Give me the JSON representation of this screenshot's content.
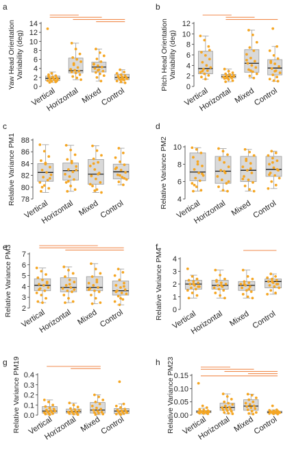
{
  "colors": {
    "point": "#f5a623",
    "box_fill": "#d9d9d9",
    "box_edge": "#9a9a9a",
    "median": "#1a1a1a",
    "sig": "#f08a4b"
  },
  "chart_data": [
    {
      "type": "box",
      "panel_label": "a",
      "ylabel": "Yaw Head Orientation Variability (deg)",
      "ylabel_lines": [
        "Yaw Head Orientation",
        "Variability (deg)"
      ],
      "categories": [
        "Vertical",
        "Horizontal",
        "Mixed",
        "Control"
      ],
      "ylim": [
        0,
        14
      ],
      "yticks": [
        0,
        2,
        4,
        6,
        8,
        10,
        12,
        14
      ],
      "boxes": [
        {
          "whisker_low": 0.9,
          "q1": 1.3,
          "median": 1.8,
          "q3": 2.3,
          "whisker_high": 3.2
        },
        {
          "whisker_low": 1.5,
          "q1": 3.0,
          "median": 3.5,
          "q3": 6.3,
          "whisker_high": 9.6
        },
        {
          "whisker_low": 1.2,
          "q1": 3.2,
          "median": 4.3,
          "q3": 5.4,
          "whisker_high": 8.3
        },
        {
          "whisker_low": 0.8,
          "q1": 1.5,
          "median": 2.0,
          "q3": 2.7,
          "whisker_high": 3.7
        }
      ],
      "points": [
        [
          12.8,
          2.9,
          2.4,
          2.2,
          2.0,
          1.9,
          1.8,
          1.7,
          1.6,
          1.5,
          1.4,
          1.3,
          1.1,
          1.0,
          2.6,
          2.1,
          1.2,
          0.9
        ],
        [
          9.6,
          8.3,
          7.2,
          6.4,
          6.0,
          5.5,
          4.8,
          4.2,
          3.8,
          3.6,
          3.4,
          3.2,
          3.0,
          2.6,
          2.2,
          1.9,
          1.5,
          5.1
        ],
        [
          8.3,
          7.5,
          6.8,
          6.1,
          5.5,
          5.0,
          4.6,
          4.3,
          4.0,
          3.7,
          3.4,
          3.1,
          2.8,
          2.4,
          2.0,
          1.2,
          4.9,
          3.6
        ],
        [
          3.7,
          3.2,
          2.9,
          2.6,
          2.4,
          2.3,
          2.1,
          2.0,
          1.9,
          1.8,
          1.7,
          1.5,
          1.4,
          1.2,
          1.0,
          0.8,
          2.2,
          1.6
        ]
      ],
      "sig_bars": [
        [
          0,
          1
        ],
        [
          0,
          2
        ],
        [
          1,
          3
        ],
        [
          2,
          3
        ]
      ]
    },
    {
      "type": "box",
      "panel_label": "b",
      "ylabel": "Pitch Head Orientation Variability (deg)",
      "ylabel_lines": [
        "Pitch Head Orientation",
        "Variability (deg)"
      ],
      "categories": [
        "Vertical",
        "Horizontal",
        "Mixed",
        "Control"
      ],
      "ylim": [
        0,
        12
      ],
      "yticks": [
        0,
        2,
        4,
        6,
        8,
        10,
        12
      ],
      "boxes": [
        {
          "whisker_low": 1.4,
          "q1": 2.4,
          "median": 3.4,
          "q3": 6.7,
          "whisker_high": 9.6
        },
        {
          "whisker_low": 0.9,
          "q1": 1.6,
          "median": 1.9,
          "q3": 2.3,
          "whisker_high": 3.3
        },
        {
          "whisker_low": 1.6,
          "q1": 2.7,
          "median": 4.4,
          "q3": 7.0,
          "whisker_high": 10.7
        },
        {
          "whisker_low": 1.0,
          "q1": 2.2,
          "median": 3.5,
          "q3": 5.1,
          "whisker_high": 7.6
        }
      ],
      "points": [
        [
          9.6,
          8.8,
          7.6,
          6.5,
          5.9,
          5.2,
          4.6,
          4.0,
          3.6,
          3.3,
          3.0,
          2.7,
          2.4,
          2.1,
          1.8,
          1.4,
          6.9,
          2.9
        ],
        [
          3.3,
          2.9,
          2.6,
          2.4,
          2.2,
          2.1,
          2.0,
          1.9,
          1.8,
          1.7,
          1.6,
          1.5,
          1.3,
          1.1,
          0.9,
          2.3,
          1.9,
          1.6
        ],
        [
          10.7,
          9.8,
          8.4,
          7.4,
          6.8,
          6.1,
          5.4,
          4.8,
          4.4,
          4.0,
          3.6,
          3.2,
          2.8,
          2.4,
          2.0,
          1.6,
          5.0,
          3.0
        ],
        [
          11.0,
          7.6,
          6.8,
          5.9,
          5.3,
          4.8,
          4.3,
          3.8,
          3.4,
          3.0,
          2.6,
          2.2,
          1.8,
          1.4,
          1.1,
          1.0,
          4.5,
          2.9
        ]
      ],
      "sig_bars": [
        [
          0,
          1
        ],
        [
          1,
          2
        ],
        [
          1,
          3
        ]
      ]
    },
    {
      "type": "box",
      "panel_label": "c",
      "ylabel": "Relative Variance PM1",
      "ylabel_lines": [
        "Relative Variance PM1"
      ],
      "categories": [
        "Vertical",
        "Horizontal",
        "Mixed",
        "Control"
      ],
      "ylim": [
        78,
        88
      ],
      "yticks": [
        78,
        80,
        82,
        84,
        86,
        88
      ],
      "boxes": [
        {
          "whisker_low": 79.1,
          "q1": 81.0,
          "median": 82.5,
          "q3": 84.0,
          "whisker_high": 87.2
        },
        {
          "whisker_low": 79.3,
          "q1": 81.2,
          "median": 82.8,
          "q3": 84.1,
          "whisker_high": 87.1
        },
        {
          "whisker_low": 79.1,
          "q1": 80.5,
          "median": 82.2,
          "q3": 84.7,
          "whisker_high": 87.0
        },
        {
          "whisker_low": 80.4,
          "q1": 81.4,
          "median": 82.6,
          "q3": 83.9,
          "whisker_high": 86.6
        }
      ],
      "points": [
        [
          87.2,
          86.1,
          85.2,
          84.5,
          83.9,
          83.4,
          82.9,
          82.5,
          82.1,
          81.7,
          81.2,
          80.8,
          80.3,
          79.8,
          79.3,
          84.1,
          81.5,
          80.0
        ],
        [
          87.1,
          86.3,
          85.5,
          84.7,
          84.1,
          83.5,
          83.0,
          82.6,
          82.2,
          81.8,
          81.3,
          80.8,
          80.2,
          79.6,
          79.3,
          84.4,
          82.9,
          81.0
        ],
        [
          87.0,
          86.2,
          85.4,
          84.8,
          84.2,
          83.6,
          83.0,
          82.4,
          81.9,
          81.4,
          80.8,
          80.2,
          79.6,
          79.1,
          84.0,
          82.2,
          80.5,
          79.4
        ],
        [
          86.6,
          85.8,
          85.0,
          84.3,
          83.8,
          83.3,
          82.9,
          82.5,
          82.1,
          81.7,
          81.3,
          80.9,
          80.4,
          83.1,
          82.0,
          81.5
        ]
      ],
      "sig_bars": []
    },
    {
      "type": "box",
      "panel_label": "d",
      "ylabel": "Relative Variance PM2",
      "ylabel_lines": [
        "Relative Variance PM2"
      ],
      "categories": [
        "Vertical",
        "Horizontal",
        "Mixed",
        "Control"
      ],
      "ylim": [
        4,
        10
      ],
      "yticks": [
        4,
        6,
        8,
        10
      ],
      "boxes": [
        {
          "whisker_low": 4.9,
          "q1": 6.1,
          "median": 7.1,
          "q3": 9.3,
          "whisker_high": 9.9
        },
        {
          "whisker_low": 4.9,
          "q1": 5.8,
          "median": 7.2,
          "q3": 8.9,
          "whisker_high": 9.8
        },
        {
          "whisker_low": 4.9,
          "q1": 6.0,
          "median": 7.3,
          "q3": 8.9,
          "whisker_high": 9.7
        },
        {
          "whisker_low": 5.2,
          "q1": 6.6,
          "median": 7.4,
          "q3": 8.9,
          "whisker_high": 9.5
        }
      ],
      "points": [
        [
          9.9,
          9.7,
          9.3,
          8.8,
          8.3,
          7.8,
          7.4,
          7.0,
          6.7,
          6.4,
          6.1,
          5.8,
          5.4,
          5.0,
          4.9,
          8.0,
          6.9,
          5.6
        ],
        [
          9.8,
          9.5,
          9.1,
          8.7,
          8.2,
          7.7,
          7.3,
          7.0,
          6.6,
          6.2,
          5.8,
          5.4,
          5.0,
          4.9,
          8.5,
          7.2,
          6.0
        ],
        [
          9.7,
          9.4,
          9.0,
          8.6,
          8.1,
          7.7,
          7.3,
          7.0,
          6.6,
          6.2,
          5.9,
          5.5,
          5.1,
          4.9,
          8.4,
          7.5,
          6.3
        ],
        [
          9.5,
          9.3,
          9.0,
          8.7,
          8.4,
          8.0,
          7.6,
          7.3,
          7.0,
          6.7,
          6.4,
          6.0,
          5.6,
          5.2,
          8.2,
          7.4,
          6.8
        ]
      ],
      "sig_bars": []
    },
    {
      "type": "box",
      "panel_label": "e",
      "ylabel": "Relative Variance PM3",
      "ylabel_lines": [
        "Relative Variance PM3"
      ],
      "categories": [
        "Vertical",
        "Horizontal",
        "Mixed",
        "Control"
      ],
      "ylim": [
        2,
        7
      ],
      "yticks": [
        2,
        3,
        4,
        5,
        6,
        7
      ],
      "boxes": [
        {
          "whisker_low": 2.5,
          "q1": 3.6,
          "median": 4.1,
          "q3": 4.7,
          "whisker_high": 5.7
        },
        {
          "whisker_low": 2.5,
          "q1": 3.5,
          "median": 3.9,
          "q3": 4.8,
          "whisker_high": 5.8
        },
        {
          "whisker_low": 2.4,
          "q1": 3.6,
          "median": 3.9,
          "q3": 4.9,
          "whisker_high": 6.1
        },
        {
          "whisker_low": 2.3,
          "q1": 3.2,
          "median": 3.6,
          "q3": 4.5,
          "whisker_high": 5.6
        }
      ],
      "points": [
        [
          5.7,
          5.4,
          5.1,
          4.8,
          4.6,
          4.4,
          4.2,
          4.1,
          3.9,
          3.8,
          3.6,
          3.4,
          3.2,
          2.9,
          2.6,
          2.5,
          4.3,
          3.7
        ],
        [
          5.8,
          5.5,
          5.2,
          4.9,
          4.6,
          4.4,
          4.1,
          3.9,
          3.8,
          3.6,
          3.5,
          3.2,
          2.9,
          2.6,
          2.5,
          4.2,
          3.7
        ],
        [
          6.1,
          5.6,
          5.2,
          4.9,
          4.6,
          4.3,
          4.1,
          3.9,
          3.8,
          3.6,
          3.5,
          3.2,
          2.9,
          2.5,
          2.4,
          4.4,
          3.7
        ],
        [
          5.6,
          5.3,
          5.0,
          4.6,
          4.3,
          4.1,
          3.9,
          3.7,
          3.6,
          3.4,
          3.3,
          3.1,
          2.8,
          2.6,
          2.3,
          4.0,
          3.5,
          2.9
        ]
      ],
      "sig_bars": [
        [
          0,
          2
        ],
        [
          0,
          3
        ],
        [
          1,
          3
        ]
      ]
    },
    {
      "type": "box",
      "panel_label": "f",
      "ylabel": "Relative Variance PM4",
      "ylabel_lines": [
        "Relative Variance PM4"
      ],
      "categories": [
        "Vertical",
        "Horizontal",
        "Mixed",
        "Control"
      ],
      "ylim": [
        0,
        4
      ],
      "yticks": [
        0,
        1,
        2,
        3,
        4
      ],
      "boxes": [
        {
          "whisker_low": 0.9,
          "q1": 1.6,
          "median": 2.0,
          "q3": 2.3,
          "whisker_high": 2.7
        },
        {
          "whisker_low": 0.9,
          "q1": 1.6,
          "median": 1.9,
          "q3": 2.3,
          "whisker_high": 3.1
        },
        {
          "whisker_low": 0.9,
          "q1": 1.5,
          "median": 1.9,
          "q3": 2.2,
          "whisker_high": 3.1
        },
        {
          "whisker_low": 1.2,
          "q1": 1.7,
          "median": 2.2,
          "q3": 2.4,
          "whisker_high": 2.8
        }
      ],
      "points": [
        [
          3.2,
          2.6,
          2.4,
          2.3,
          2.2,
          2.1,
          2.0,
          1.9,
          1.8,
          1.7,
          1.6,
          1.5,
          1.3,
          1.1,
          0.9,
          2.0,
          1.8
        ],
        [
          3.1,
          2.7,
          2.4,
          2.3,
          2.1,
          2.0,
          1.9,
          1.8,
          1.7,
          1.6,
          1.5,
          1.3,
          1.1,
          0.9,
          2.2,
          1.9
        ],
        [
          3.1,
          2.6,
          2.4,
          2.2,
          2.1,
          2.0,
          1.9,
          1.8,
          1.7,
          1.5,
          1.4,
          1.2,
          1.0,
          0.9,
          2.0,
          1.6
        ],
        [
          2.8,
          2.6,
          2.5,
          2.4,
          2.3,
          2.2,
          2.1,
          2.0,
          1.9,
          1.8,
          1.7,
          1.5,
          1.3,
          1.2,
          2.2,
          2.0
        ]
      ],
      "sig_bars": [
        [
          2,
          3
        ]
      ]
    },
    {
      "type": "box",
      "panel_label": "g",
      "ylabel": "Relative Variance PM19",
      "ylabel_lines": [
        "Relative Variance PM19"
      ],
      "categories": [
        "Vertical",
        "Horizontal",
        "Mixed",
        "Control"
      ],
      "ylim": [
        0,
        0.4
      ],
      "yticks": [
        0.0,
        0.1,
        0.2,
        0.3,
        0.4
      ],
      "tick_decimals": 1,
      "boxes": [
        {
          "whisker_low": 0.005,
          "q1": 0.02,
          "median": 0.04,
          "q3": 0.085,
          "whisker_high": 0.15
        },
        {
          "whisker_low": 0.005,
          "q1": 0.02,
          "median": 0.035,
          "q3": 0.06,
          "whisker_high": 0.12
        },
        {
          "whisker_low": 0.005,
          "q1": 0.02,
          "median": 0.05,
          "q3": 0.125,
          "whisker_high": 0.2
        },
        {
          "whisker_low": 0.005,
          "q1": 0.015,
          "median": 0.04,
          "q3": 0.065,
          "whisker_high": 0.11
        }
      ],
      "points": [
        [
          0.15,
          0.13,
          0.1,
          0.085,
          0.07,
          0.06,
          0.05,
          0.045,
          0.04,
          0.035,
          0.03,
          0.025,
          0.02,
          0.015,
          0.01,
          0.005
        ],
        [
          0.12,
          0.1,
          0.08,
          0.065,
          0.055,
          0.045,
          0.04,
          0.035,
          0.03,
          0.025,
          0.02,
          0.015,
          0.01,
          0.005
        ],
        [
          0.2,
          0.18,
          0.15,
          0.13,
          0.11,
          0.09,
          0.07,
          0.06,
          0.05,
          0.04,
          0.03,
          0.025,
          0.02,
          0.01,
          0.005
        ],
        [
          0.33,
          0.11,
          0.09,
          0.075,
          0.06,
          0.05,
          0.045,
          0.04,
          0.035,
          0.03,
          0.025,
          0.02,
          0.015,
          0.01,
          0.005
        ]
      ],
      "sig_bars": [
        [
          0,
          2
        ],
        [
          1,
          2
        ]
      ]
    },
    {
      "type": "box",
      "panel_label": "h",
      "ylabel": "Relative Variance PM23",
      "ylabel_lines": [
        "Relative Variance PM23"
      ],
      "categories": [
        "Vertical",
        "Horizontal",
        "Mixed",
        "Control"
      ],
      "ylim": [
        0,
        0.15
      ],
      "yticks": [
        0.0,
        0.05,
        0.1,
        0.15
      ],
      "tick_decimals": 2,
      "boxes": [
        {
          "whisker_low": 0.004,
          "q1": 0.009,
          "median": 0.013,
          "q3": 0.017,
          "whisker_high": 0.026
        },
        {
          "whisker_low": 0.005,
          "q1": 0.018,
          "median": 0.029,
          "q3": 0.045,
          "whisker_high": 0.08
        },
        {
          "whisker_low": 0.004,
          "q1": 0.018,
          "median": 0.034,
          "q3": 0.058,
          "whisker_high": 0.079
        },
        {
          "whisker_low": 0.004,
          "q1": 0.008,
          "median": 0.011,
          "q3": 0.015,
          "whisker_high": 0.02
        }
      ],
      "points": [
        [
          0.12,
          0.035,
          0.028,
          0.022,
          0.019,
          0.017,
          0.015,
          0.014,
          0.013,
          0.012,
          0.011,
          0.01,
          0.009,
          0.008,
          0.007,
          0.006,
          0.005
        ],
        [
          0.08,
          0.07,
          0.06,
          0.05,
          0.045,
          0.04,
          0.035,
          0.03,
          0.028,
          0.025,
          0.022,
          0.02,
          0.017,
          0.014,
          0.01,
          0.007,
          0.005
        ],
        [
          0.079,
          0.075,
          0.065,
          0.058,
          0.05,
          0.045,
          0.04,
          0.035,
          0.032,
          0.028,
          0.025,
          0.02,
          0.015,
          0.01,
          0.006,
          0.004
        ],
        [
          0.035,
          0.02,
          0.018,
          0.016,
          0.015,
          0.014,
          0.013,
          0.012,
          0.011,
          0.01,
          0.009,
          0.008,
          0.007,
          0.006,
          0.005,
          0.004
        ]
      ],
      "sig_bars": [
        [
          0,
          1
        ],
        [
          0,
          2
        ],
        [
          1,
          3
        ],
        [
          2,
          3
        ],
        [
          0,
          3
        ]
      ]
    }
  ]
}
